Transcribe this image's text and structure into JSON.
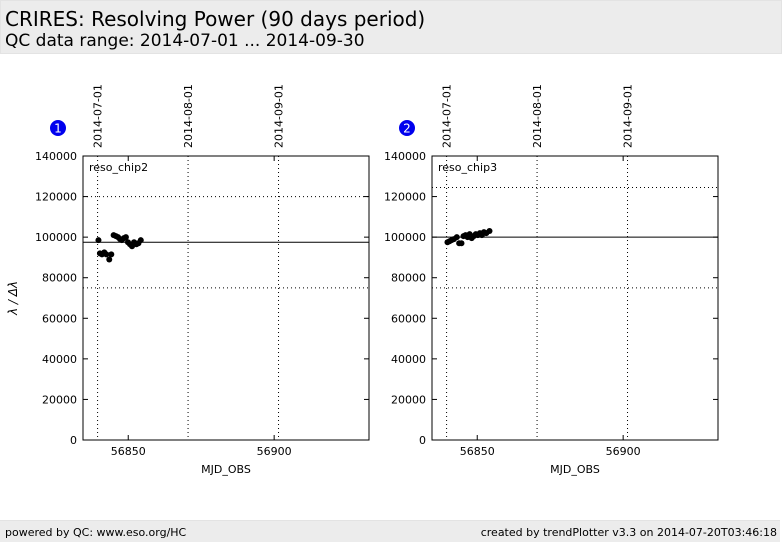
{
  "header": {
    "title": "CRIRES: Resolving Power (90 days period)",
    "subtitle": "QC data range: 2014-07-01 ... 2014-09-30"
  },
  "footer": {
    "left": "powered by QC: www.eso.org/HC",
    "right": "created by trendPlotter v3.3 on 2014-07-20T03:46:18"
  },
  "colors": {
    "badge": "#0000ee",
    "points": "#000000",
    "header_bg": "#ececec"
  },
  "chart_data": [
    {
      "type": "scatter",
      "panel_number": "1",
      "label": "reso_chip2",
      "xlabel": "MJD_OBS",
      "ylabel": "λ / Δλ",
      "xlim": [
        56834.5,
        56932.5
      ],
      "ylim": [
        0,
        140000
      ],
      "xticks": [
        56850,
        56900
      ],
      "yticks": [
        0,
        20000,
        40000,
        60000,
        80000,
        100000,
        120000,
        140000
      ],
      "date_markers": [
        {
          "x": 56839.5,
          "label": "2014-07-01"
        },
        {
          "x": 56870.5,
          "label": "2014-08-01"
        },
        {
          "x": 56901.5,
          "label": "2014-09-01"
        }
      ],
      "reference_line": 97500,
      "threshold_lines": [
        75000,
        120000
      ],
      "grid": true,
      "points": [
        {
          "x": 56839.8,
          "y": 98500
        },
        {
          "x": 56840.3,
          "y": 92000
        },
        {
          "x": 56841.0,
          "y": 91500
        },
        {
          "x": 56841.8,
          "y": 92500
        },
        {
          "x": 56842.5,
          "y": 91500
        },
        {
          "x": 56843.5,
          "y": 89000
        },
        {
          "x": 56844.2,
          "y": 91500
        },
        {
          "x": 56845.0,
          "y": 101000
        },
        {
          "x": 56845.8,
          "y": 100500
        },
        {
          "x": 56846.5,
          "y": 100000
        },
        {
          "x": 56847.2,
          "y": 99000
        },
        {
          "x": 56847.8,
          "y": 98500
        },
        {
          "x": 56848.5,
          "y": 99500
        },
        {
          "x": 56849.2,
          "y": 100000
        },
        {
          "x": 56849.9,
          "y": 97500
        },
        {
          "x": 56850.6,
          "y": 96500
        },
        {
          "x": 56851.3,
          "y": 95500
        },
        {
          "x": 56852.0,
          "y": 97500
        },
        {
          "x": 56852.8,
          "y": 96500
        },
        {
          "x": 56853.5,
          "y": 97000
        },
        {
          "x": 56854.3,
          "y": 98500
        }
      ]
    },
    {
      "type": "scatter",
      "panel_number": "2",
      "label": "reso_chip3",
      "xlabel": "MJD_OBS",
      "ylabel": "",
      "xlim": [
        56834.5,
        56932.5
      ],
      "ylim": [
        0,
        140000
      ],
      "xticks": [
        56850,
        56900
      ],
      "yticks": [
        0,
        20000,
        40000,
        60000,
        80000,
        100000,
        120000,
        140000
      ],
      "date_markers": [
        {
          "x": 56839.5,
          "label": "2014-07-01"
        },
        {
          "x": 56870.5,
          "label": "2014-08-01"
        },
        {
          "x": 56901.5,
          "label": "2014-09-01"
        }
      ],
      "reference_line": 100000,
      "threshold_lines": [
        75000,
        124500
      ],
      "grid": true,
      "points": [
        {
          "x": 56839.8,
          "y": 97500
        },
        {
          "x": 56840.5,
          "y": 98000
        },
        {
          "x": 56841.2,
          "y": 98500
        },
        {
          "x": 56842.0,
          "y": 99000
        },
        {
          "x": 56843.0,
          "y": 100000
        },
        {
          "x": 56843.8,
          "y": 97000
        },
        {
          "x": 56844.6,
          "y": 97000
        },
        {
          "x": 56845.3,
          "y": 100500
        },
        {
          "x": 56846.0,
          "y": 101000
        },
        {
          "x": 56846.7,
          "y": 100000
        },
        {
          "x": 56847.4,
          "y": 101500
        },
        {
          "x": 56848.1,
          "y": 99500
        },
        {
          "x": 56848.8,
          "y": 100500
        },
        {
          "x": 56849.5,
          "y": 101500
        },
        {
          "x": 56850.2,
          "y": 101000
        },
        {
          "x": 56850.9,
          "y": 102000
        },
        {
          "x": 56851.6,
          "y": 101000
        },
        {
          "x": 56852.3,
          "y": 102500
        },
        {
          "x": 56853.1,
          "y": 102000
        },
        {
          "x": 56854.2,
          "y": 103000
        }
      ]
    }
  ]
}
